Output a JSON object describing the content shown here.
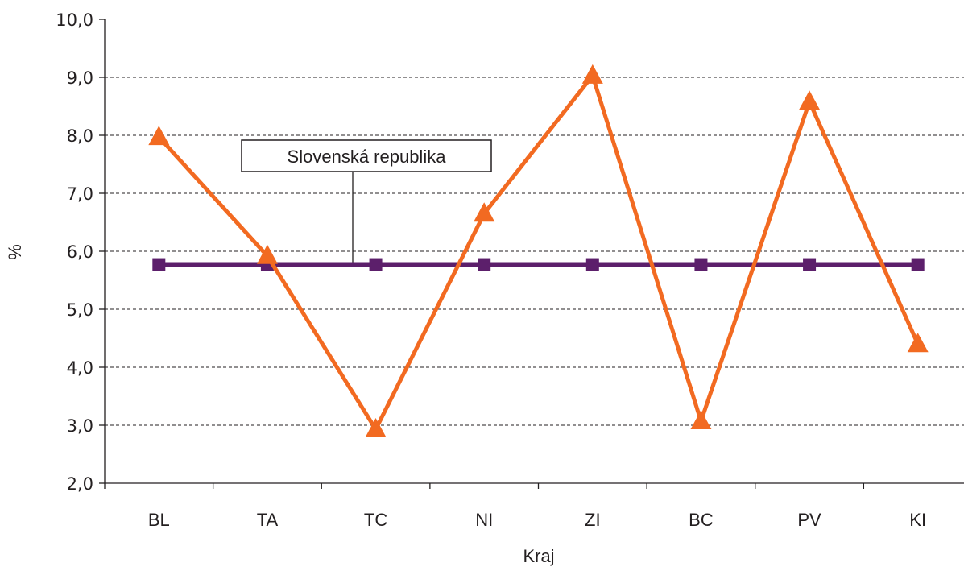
{
  "chart_data": {
    "type": "line",
    "categories": [
      "BL",
      "TA",
      "TC",
      "NI",
      "ZI",
      "BC",
      "PV",
      "KI"
    ],
    "series": [
      {
        "values": [
          7.97,
          5.92,
          2.93,
          6.65,
          9.03,
          3.07,
          8.58,
          4.4
        ],
        "color": "#f26a21",
        "marker": "triangle"
      },
      {
        "values": [
          5.77,
          5.77,
          5.77,
          5.77,
          5.77,
          5.77,
          5.77,
          5.77
        ],
        "color": "#5c1f6b",
        "marker": "square"
      }
    ],
    "ylim": [
      2.0,
      10.0
    ],
    "yticks": [
      2.0,
      3.0,
      4.0,
      5.0,
      6.0,
      7.0,
      8.0,
      9.0,
      10.0
    ],
    "ytick_labels": [
      "2,0",
      "3,0",
      "4,0",
      "5,0",
      "6,0",
      "7,0",
      "8,0",
      "9,0",
      "10,0"
    ],
    "ylabel": "%",
    "xlabel": "Kraj",
    "grid": "horizontal dashed",
    "annotation": {
      "text": "Slovenská republika",
      "points_to_series": 1
    }
  }
}
